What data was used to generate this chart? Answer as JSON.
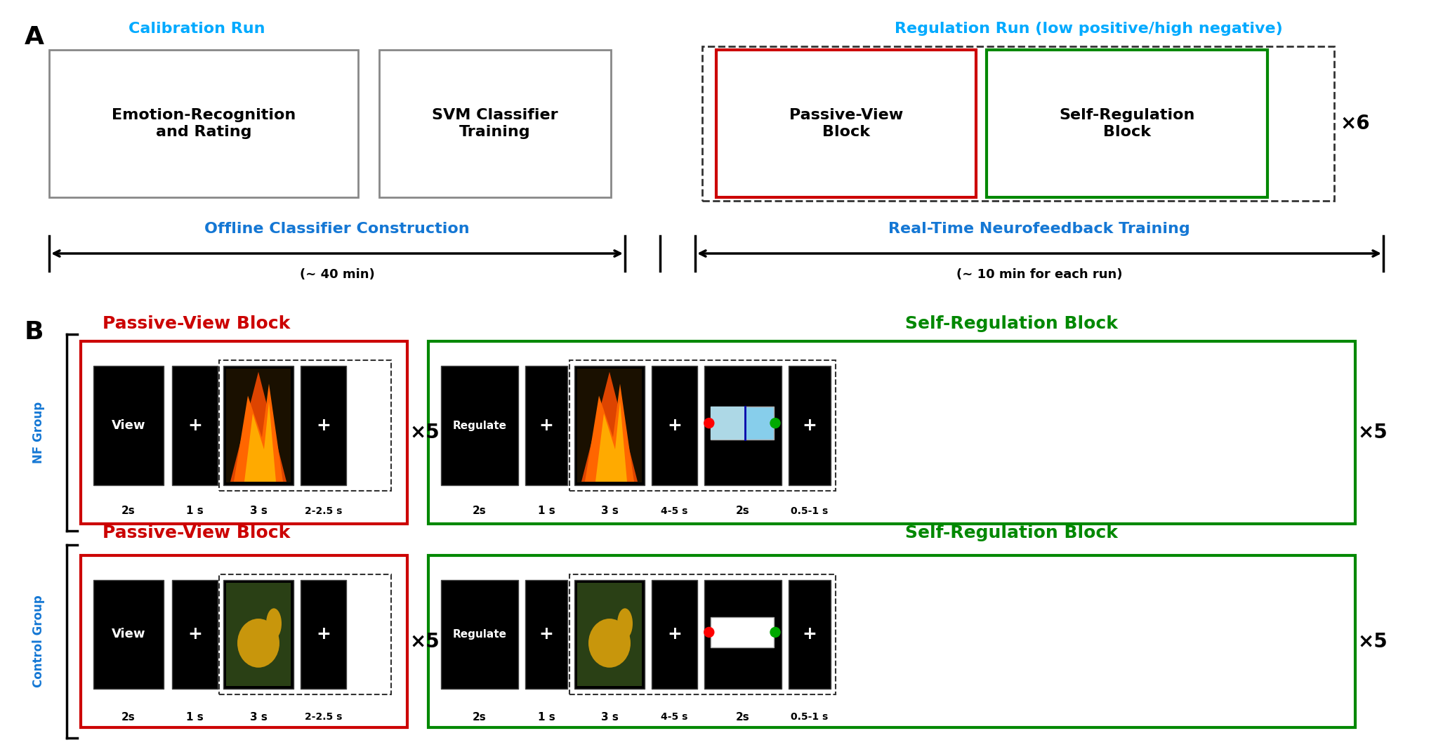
{
  "fig_width": 20.55,
  "fig_height": 10.61,
  "bg_color": "#ffffff",
  "cyan_color": "#00AAFF",
  "red_color": "#CC0000",
  "green_color": "#008800",
  "black_color": "#000000",
  "blue_label_color": "#1477D4",
  "panel_A_label": "A",
  "panel_B_label": "B",
  "calib_run_label": "Calibration Run",
  "reg_run_label": "Regulation Run (low positive/high negative)",
  "box1_text": "Emotion-Recognition\nand Rating",
  "box2_text": "SVM Classifier\nTraining",
  "box3_text": "Passive-View\nBlock",
  "box4_text": "Self-Regulation\nBlock",
  "x6_label": "×6",
  "offline_label": "Offline Classifier Construction",
  "offline_sub": "(∼ 40 min)",
  "realtime_label": "Real-Time Neurofeedback Training",
  "realtime_sub": "(∼ 10 min for each run)",
  "nf_passive_title": "Passive-View Block",
  "nf_self_title": "Self-Regulation Block",
  "ctrl_passive_title": "Passive-View Block",
  "ctrl_self_title": "Self-Regulation Block",
  "nf_group_label": "NF Group",
  "ctrl_group_label": "Control Group",
  "view_text": "View",
  "regulate_text": "Regulate",
  "plus_text": "+",
  "x5_text": "×5"
}
